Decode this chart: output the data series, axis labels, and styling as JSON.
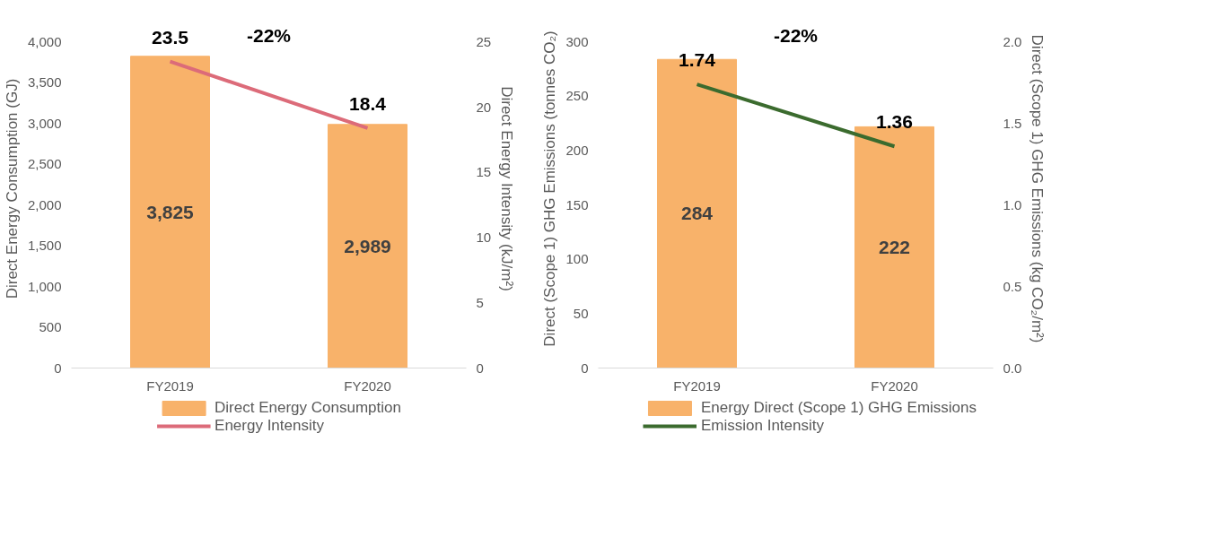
{
  "chart_data": [
    {
      "type": "bar",
      "categories": [
        "FY2019",
        "FY2020"
      ],
      "ylabel": "Direct Energy Consumption (GJ)",
      "y2label": "Direct Energy Intensity (kJ/m²)",
      "series": [
        {
          "name": "Direct Energy Consumption",
          "color": "#f8b26a",
          "values": [
            3825,
            2989
          ],
          "value_labels": [
            "3,825",
            "2,989"
          ]
        },
        {
          "name": "Energy Intensity",
          "type": "line",
          "axis": "y2",
          "color": "#dc6b79",
          "values": [
            23.5,
            18.4
          ],
          "value_labels": [
            "23.5",
            "18.4"
          ]
        }
      ],
      "ylim": [
        0,
        4000
      ],
      "yticks": [
        0,
        {
          "value": 500,
          "label": "500"
        },
        {
          "value": 1000,
          "label": "1,000"
        },
        {
          "value": 1500,
          "label": "1,500"
        },
        {
          "value": 2000,
          "label": "2,000"
        },
        {
          "value": 2500,
          "label": "2,500"
        },
        {
          "value": 3000,
          "label": "3,000"
        },
        {
          "value": 3500,
          "label": "3,500"
        },
        {
          "value": 4000,
          "label": "4,000"
        }
      ],
      "y2lim": [
        0,
        25
      ],
      "y2ticks": [
        0,
        5,
        10,
        15,
        20,
        25
      ],
      "annotations": [
        "-22%"
      ],
      "legend": "bottom",
      "grid": false
    },
    {
      "type": "bar",
      "categories": [
        "FY2019",
        "FY2020"
      ],
      "ylabel": "Direct (Scope 1) GHG Emissions (tonnes CO₂)",
      "y2label": "Direct (Scope 1) GHG Emissions (kg CO₂/m²)",
      "series": [
        {
          "name": "Energy Direct (Scope 1) GHG Emissions",
          "color": "#f8b26a",
          "values": [
            284,
            222
          ],
          "value_labels": [
            "284",
            "222"
          ]
        },
        {
          "name": "Emission Intensity",
          "type": "line",
          "axis": "y2",
          "color": "#3b6b2e",
          "values": [
            1.74,
            1.36
          ],
          "value_labels": [
            "1.74",
            "1.36"
          ]
        }
      ],
      "ylim": [
        0,
        300
      ],
      "yticks": [
        0,
        50,
        100,
        150,
        200,
        250,
        300
      ],
      "y2lim": [
        0,
        2.0
      ],
      "y2ticks": [
        {
          "value": 0,
          "label": "0.0"
        },
        {
          "value": 0.5,
          "label": "0.5"
        },
        {
          "value": 1.0,
          "label": "1.0"
        },
        {
          "value": 1.5,
          "label": "1.5"
        },
        {
          "value": 2.0,
          "label": "2.0"
        }
      ],
      "annotations": [
        "-22%"
      ],
      "legend": "bottom",
      "grid": false
    }
  ]
}
